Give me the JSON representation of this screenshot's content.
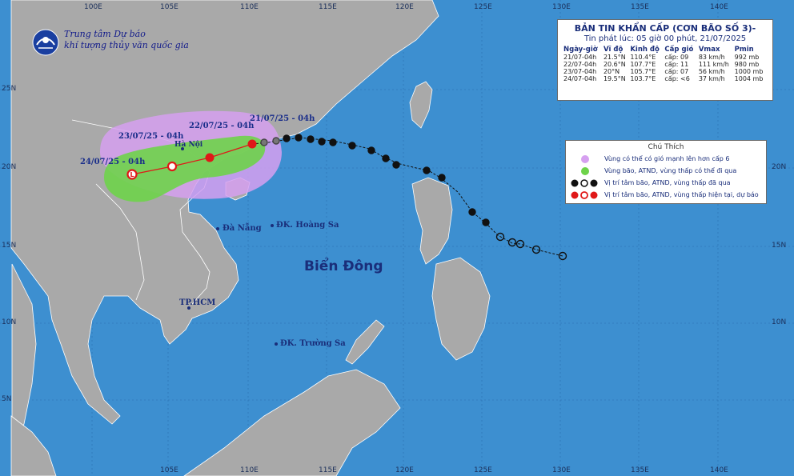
{
  "agency": {
    "line1": "Trung tâm Dự báo",
    "line2": "khí tượng thủy văn quốc gia"
  },
  "bulletin": {
    "title": "BẢN TIN KHẨN CẤP (CƠN BÃO SỐ 3)-",
    "issued": "Tin phát lúc: 05 giờ 00 phút, 21/07/2025",
    "columns": [
      "Ngày-giờ",
      "Vĩ độ",
      "Kinh độ",
      "Cấp gió",
      "Vmax",
      "Pmin"
    ],
    "rows": [
      [
        "21/07-04h",
        "21.5°N",
        "110.4°E",
        "cấp: 09",
        "83 km/h",
        "992 mb"
      ],
      [
        "22/07-04h",
        "20.6°N",
        "107.7°E",
        "cấp: 11",
        "111 km/h",
        "980 mb"
      ],
      [
        "23/07-04h",
        "20°N",
        "105.7°E",
        "cấp: 07",
        "56 km/h",
        "1000 mb"
      ],
      [
        "24/07-04h",
        "19.5°N",
        "103.7°E",
        "cấp: <6",
        "37 km/h",
        "1004 mb"
      ]
    ]
  },
  "legend": {
    "title": "Chú Thích",
    "items": [
      "Vùng có thể có gió mạnh lên hơn cấp 6",
      "Vùng bão, ATND, vùng thấp có thể đi qua",
      "Vị trí tâm bão, ATND, vùng thấp đã qua",
      "Vị trí tâm bão, ATND, vùng thấp hiện tại, dự báo"
    ]
  },
  "forecast_labels": [
    "21/07/25 - 04h",
    "22/07/25 - 04h",
    "23/07/25 - 04h",
    "24/07/25 - 04h"
  ],
  "places": {
    "hanoi": "Hà Nội",
    "danang": "Đà Nẵng",
    "hoangsa": "ĐK. Hoàng Sa",
    "hcm": "TP.HCM",
    "truongsa": "ĐK. Trường Sa",
    "sea": "Biển Đông"
  },
  "axes": {
    "top": [
      "100E",
      "105E",
      "110E",
      "115E",
      "120E",
      "125E",
      "130E",
      "135E",
      "140E"
    ],
    "bottom": [
      "105E",
      "110E",
      "115E",
      "120E",
      "125E",
      "130E",
      "135E",
      "140E"
    ],
    "left": [
      "25N",
      "20N",
      "15N",
      "10N",
      "5N"
    ],
    "right": [
      "20N",
      "15N",
      "10N"
    ]
  },
  "colors": {
    "sea": "#3d8fd0",
    "land": "#a9a9a9",
    "wind_zone": "#d6a0f0",
    "track_zone": "#6ed34a",
    "current": "#e01818",
    "past": "#111111"
  }
}
